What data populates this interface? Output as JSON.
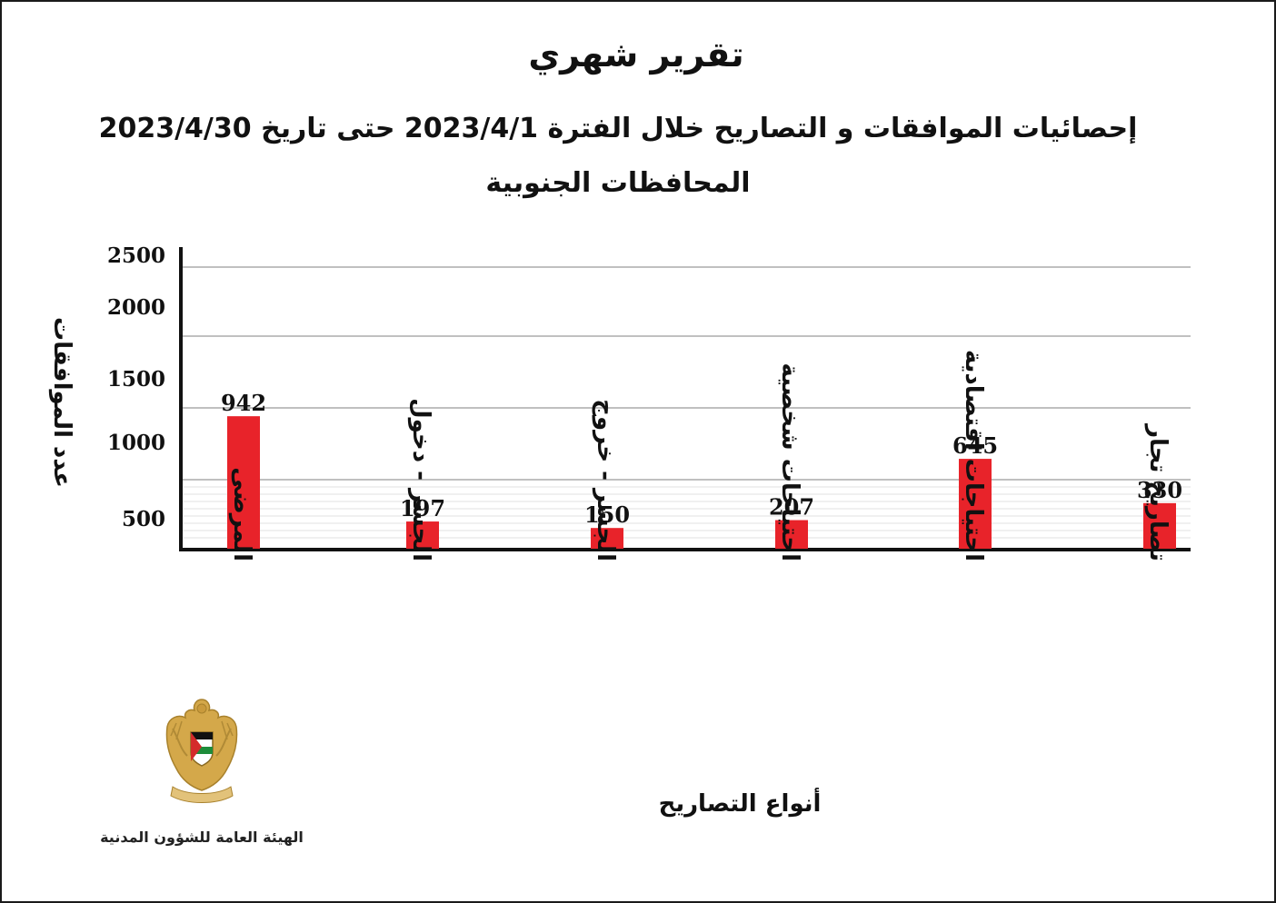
{
  "title": "تقرير شهري",
  "subtitle": "إحصائيات الموافقات و التصاريح خلال الفترة 2023/4/1 حتى تاريخ 2023/4/30",
  "region": "المحافظات الجنوبية",
  "organization": "الهيئة العامة للشؤون المدنية",
  "colors": {
    "bar": "#e8232a",
    "axis": "#111111",
    "grid": "#9a9a9a"
  },
  "chart_data": {
    "type": "bar",
    "categories": [
      "المرضى",
      "الجسر - دخول",
      "الجسر - خروج",
      "احتياجات شخصية",
      "احتياجات اقتصادية",
      "تصاريح تجار"
    ],
    "values": [
      942,
      197,
      150,
      207,
      645,
      330
    ],
    "yticks": [
      500,
      1000,
      1500,
      2000,
      2500
    ],
    "ylabel": "عدد الموافقات",
    "xlabel": "أنواع التصاريح",
    "grid": true,
    "legend": "none"
  }
}
